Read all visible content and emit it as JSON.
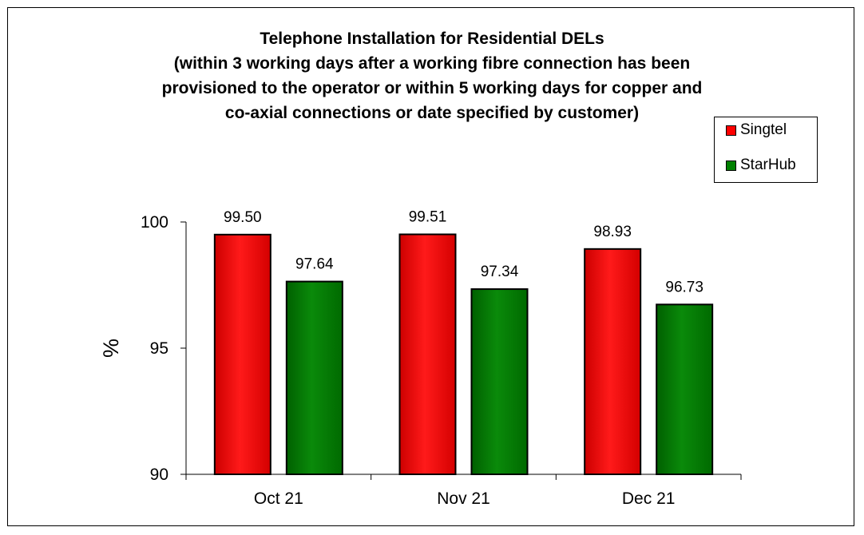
{
  "colors": {
    "singtel": "#ff0000",
    "starhub": "#008000",
    "axis": "#000000",
    "background": "#ffffff"
  },
  "chart_data": {
    "type": "bar",
    "title": [
      "Telephone Installation for Residential DELs",
      "(within 3 working days after a working fibre connection has been",
      "provisioned to the operator or within 5 working days for copper and",
      "co-axial connections or date specified by customer)"
    ],
    "xlabel": "",
    "ylabel": "%",
    "ylim": [
      90,
      100
    ],
    "yticks": [
      "90",
      "95",
      "100"
    ],
    "categories": [
      "Oct 21",
      "Nov 21",
      "Dec 21"
    ],
    "series": [
      {
        "name": "Singtel",
        "color": "#ff0000",
        "values": [
          99.5,
          99.51,
          98.93
        ],
        "labels": [
          "99.50",
          "99.51",
          "98.93"
        ]
      },
      {
        "name": "StarHub",
        "color": "#008000",
        "values": [
          97.64,
          97.34,
          96.73
        ],
        "labels": [
          "97.64",
          "97.34",
          "96.73"
        ]
      }
    ],
    "legend": "top-right",
    "grid": false
  }
}
